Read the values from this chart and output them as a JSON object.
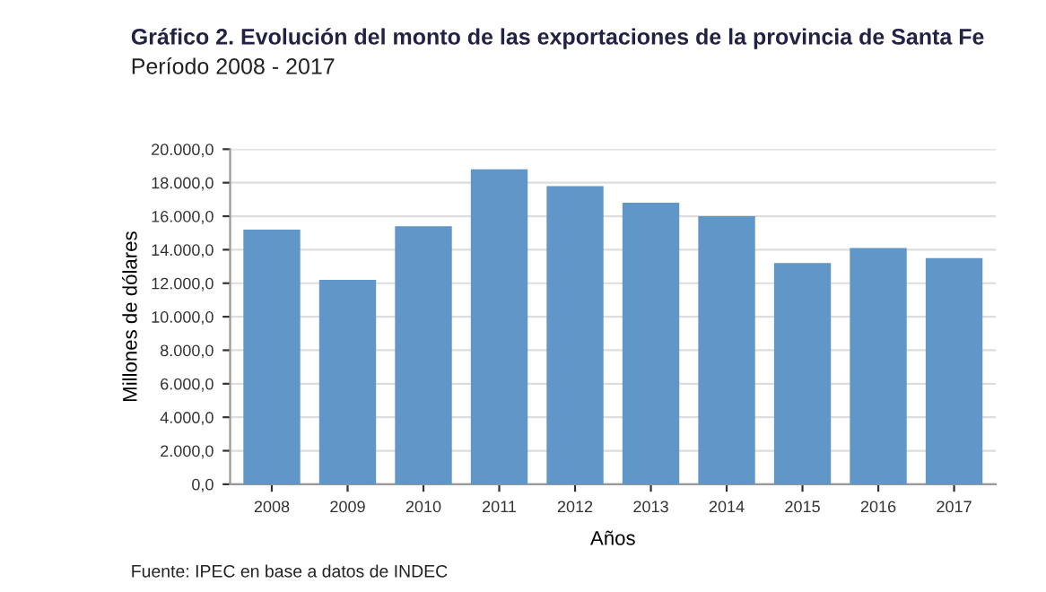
{
  "chart_data": {
    "type": "bar",
    "title": "Gráfico 2. Evolución del monto de las exportaciones de la provincia de Santa Fe",
    "subtitle": "Período 2008 - 2017",
    "xlabel": "Años",
    "ylabel": "Millones de dólares",
    "categories": [
      "2008",
      "2009",
      "2010",
      "2011",
      "2012",
      "2013",
      "2014",
      "2015",
      "2016",
      "2017"
    ],
    "values": [
      15200,
      12200,
      15400,
      18800,
      17800,
      16800,
      16000,
      13200,
      14100,
      13500
    ],
    "color": "#6096c8",
    "ylim": [
      0,
      20000
    ],
    "yticks": [
      {
        "value": 0,
        "label": "0,0"
      },
      {
        "value": 2000,
        "label": "2.000,0"
      },
      {
        "value": 4000,
        "label": "4.000,0"
      },
      {
        "value": 6000,
        "label": "6.000,0"
      },
      {
        "value": 8000,
        "label": "8.000,0"
      },
      {
        "value": 10000,
        "label": "10.000,0"
      },
      {
        "value": 12000,
        "label": "12.000,0"
      },
      {
        "value": 14000,
        "label": "14.000,0"
      },
      {
        "value": 16000,
        "label": "16.000,0"
      },
      {
        "value": 18000,
        "label": "18.000,0"
      },
      {
        "value": 20000,
        "label": "20.000,0"
      }
    ],
    "grid": "y",
    "annotations": [
      "Fuente: IPEC en base a datos de INDEC"
    ]
  }
}
